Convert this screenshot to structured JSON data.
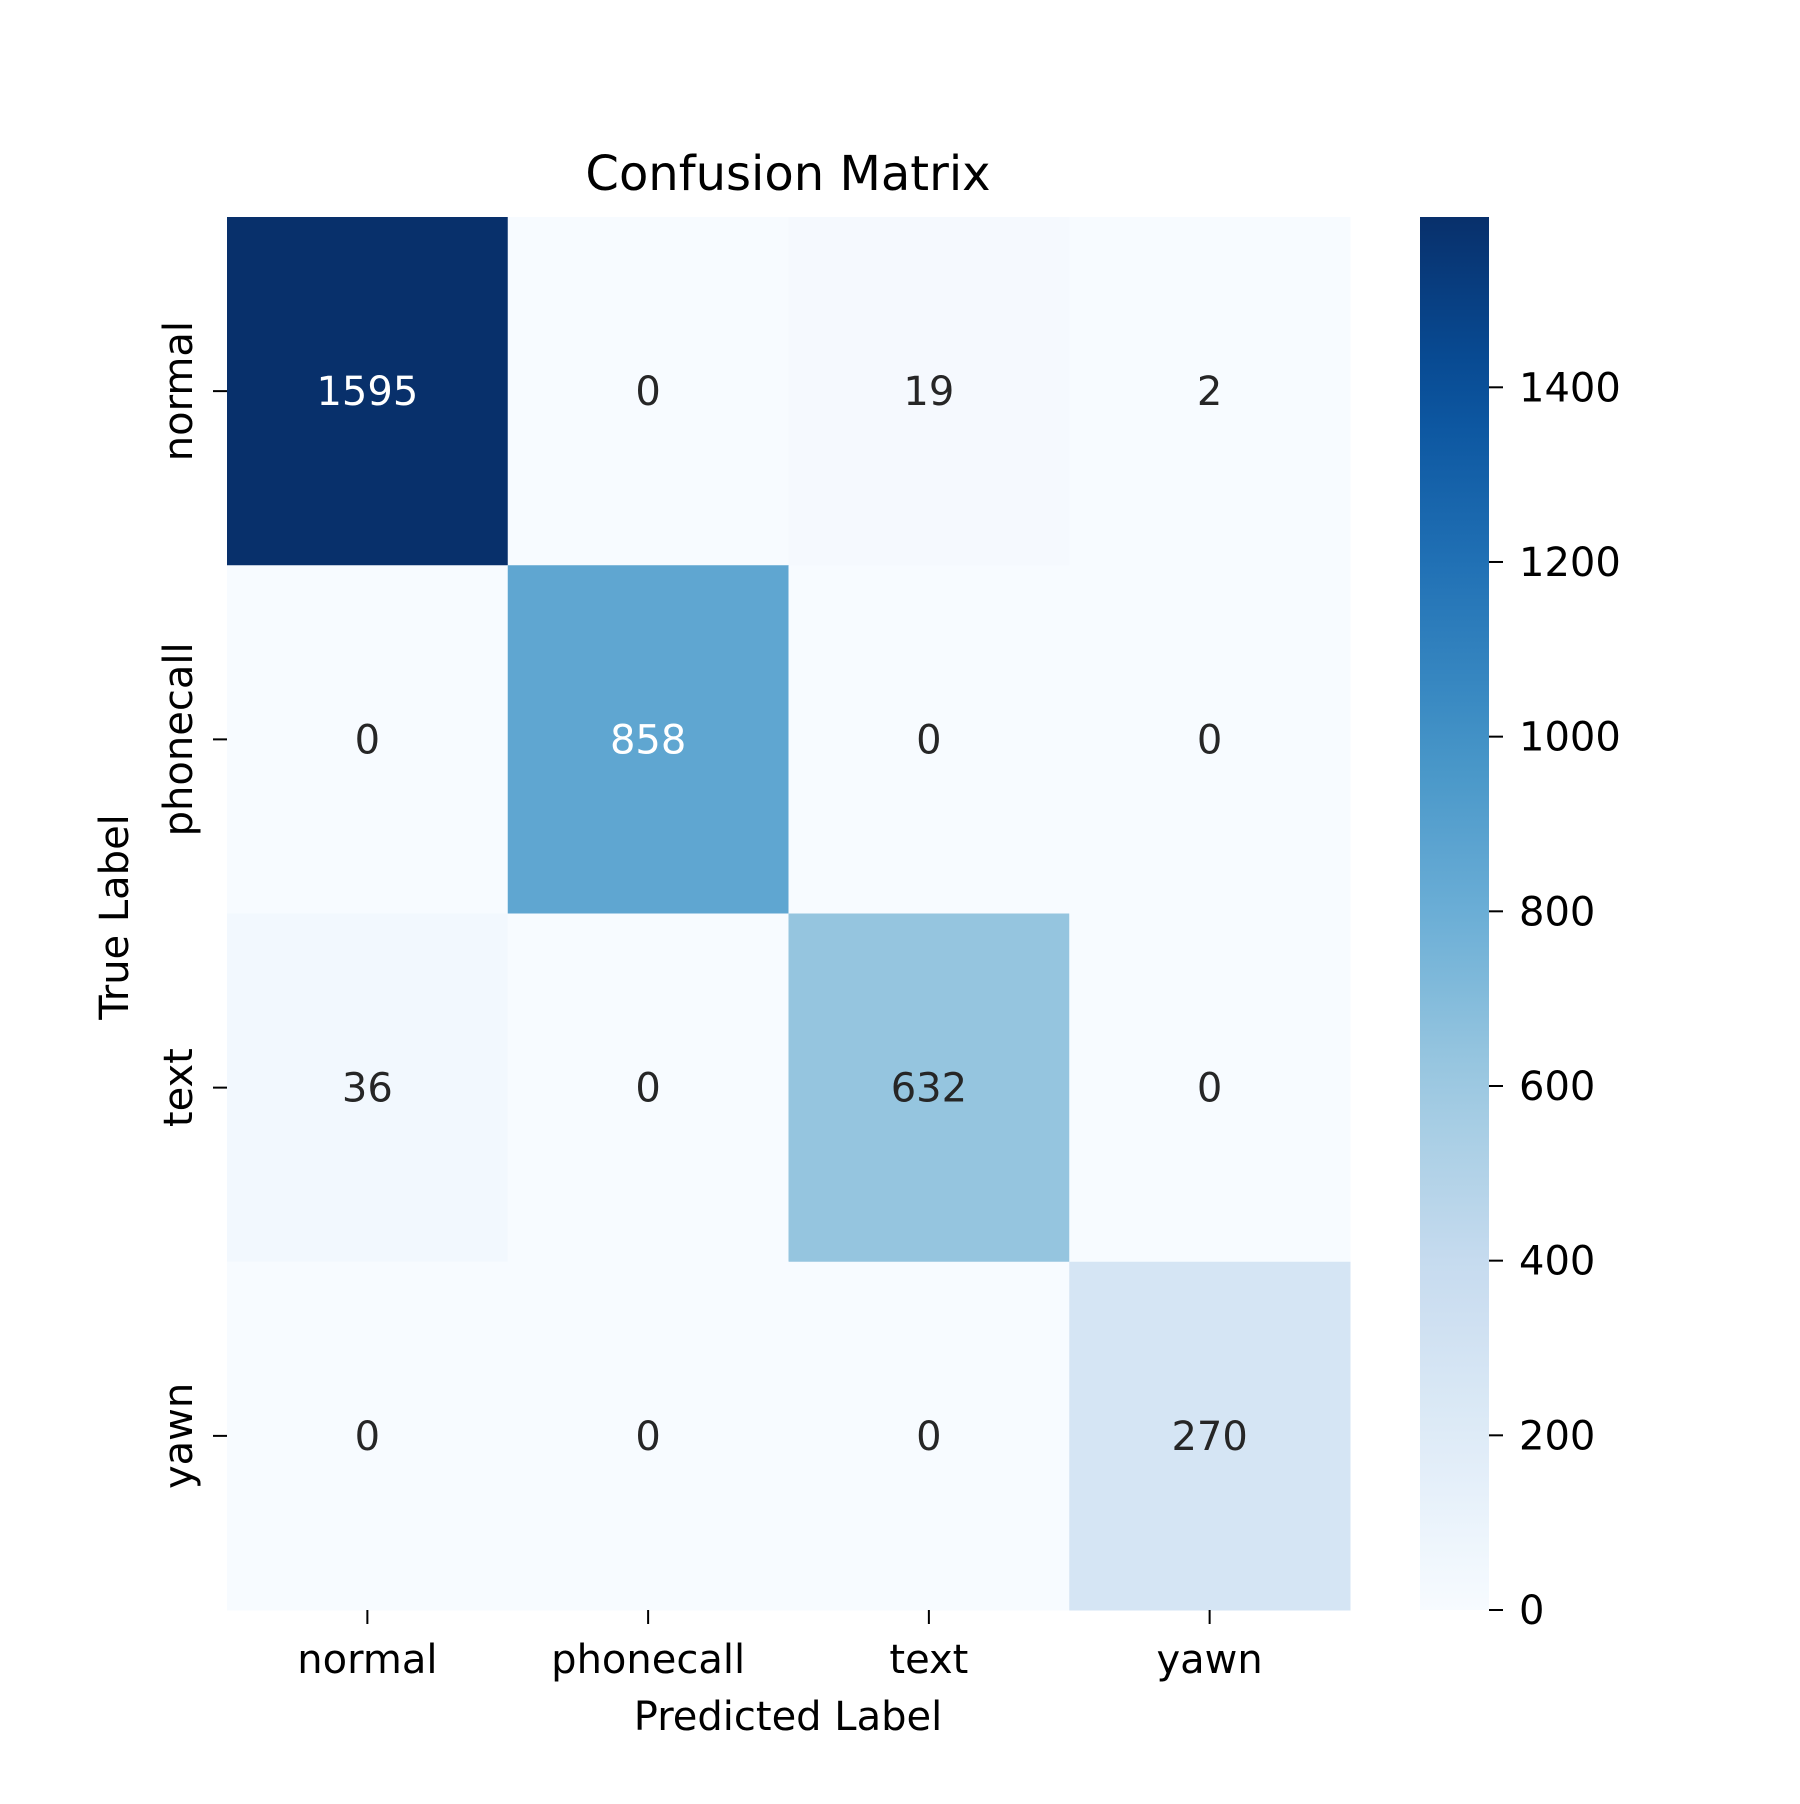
{
  "chart_data": {
    "type": "heatmap",
    "title": "Confusion Matrix",
    "xlabel": "Predicted Label",
    "ylabel": "True Label",
    "x_categories": [
      "normal",
      "phonecall",
      "text",
      "yawn"
    ],
    "y_categories": [
      "normal",
      "phonecall",
      "text",
      "yawn"
    ],
    "values": [
      [
        1595,
        0,
        19,
        2
      ],
      [
        0,
        858,
        0,
        0
      ],
      [
        36,
        0,
        632,
        0
      ],
      [
        0,
        0,
        0,
        270
      ]
    ],
    "colormap": "Blues",
    "colorbar": {
      "min": 0,
      "max": 1595,
      "ticks": [
        0,
        200,
        400,
        600,
        800,
        1000,
        1200,
        1400
      ]
    },
    "annotation_colors": {
      "dark_text": "#262626",
      "light_text": "#ffffff"
    }
  }
}
